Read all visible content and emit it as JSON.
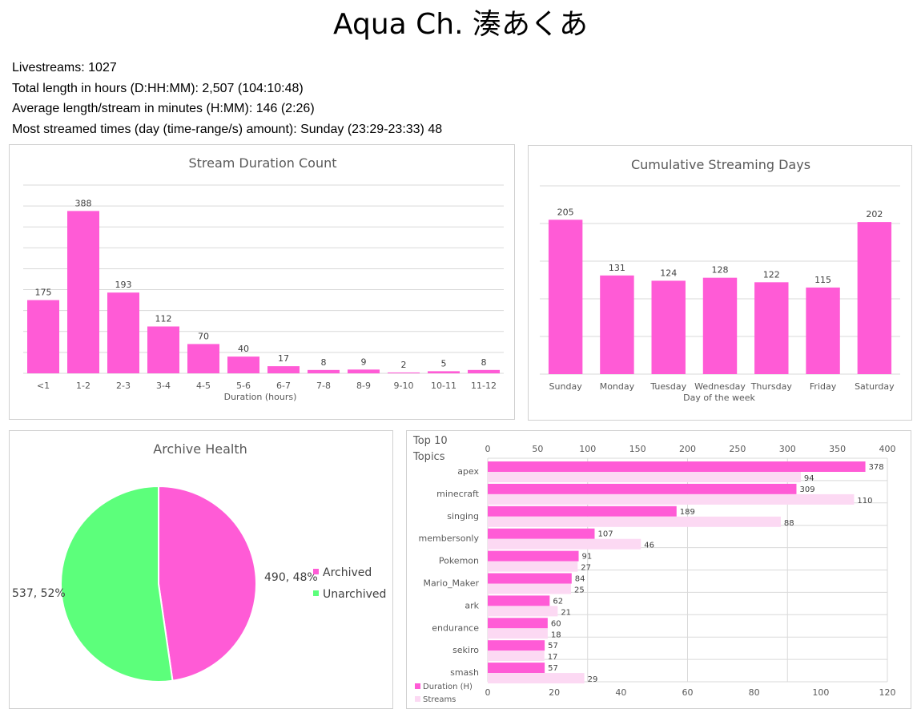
{
  "page": {
    "title": "Aqua Ch. 湊あくあ",
    "stats": [
      "Livestreams: 1027",
      "Total length in hours (D:HH:MM): 2,507 (104:10:48)",
      "Average length/stream in minutes (H:MM): 146 (2:26)",
      "Most streamed times (day (time-range/s) amount): Sunday (23:29-23:33) 48"
    ]
  },
  "colors": {
    "primary": "#ff5bd6",
    "secondary": "#fcd9f3",
    "unarchived": "#5cff7b",
    "grid": "#d9d9d9",
    "text": "#595959",
    "title": "#595959"
  },
  "chart_data": [
    {
      "type": "bar",
      "title": "Stream Duration Count",
      "xlabel": "Duration (hours)",
      "ylabel": "",
      "categories": [
        "<1",
        "1-2",
        "2-3",
        "3-4",
        "4-5",
        "5-6",
        "6-7",
        "7-8",
        "8-9",
        "9-10",
        "10-11",
        "11-12"
      ],
      "values": [
        175,
        388,
        193,
        112,
        70,
        40,
        17,
        8,
        9,
        2,
        5,
        8
      ],
      "ylim": [
        0,
        450
      ],
      "grid": true,
      "data_labels": true
    },
    {
      "type": "bar",
      "title": "Cumulative Streaming Days",
      "xlabel": "Day of the week",
      "ylabel": "",
      "categories": [
        "Sunday",
        "Monday",
        "Tuesday",
        "Wednesday",
        "Thursday",
        "Friday",
        "Saturday"
      ],
      "values": [
        205,
        131,
        124,
        128,
        122,
        115,
        202
      ],
      "ylim": [
        0,
        250
      ],
      "grid": true,
      "data_labels": true
    },
    {
      "type": "pie",
      "title": "Archive Health",
      "labels": [
        "Archived",
        "Unarchived"
      ],
      "values": [
        490,
        537
      ],
      "percent_labels": [
        "490, 48%",
        "537, 52%"
      ],
      "legend": "right"
    },
    {
      "type": "bar",
      "orientation": "horizontal",
      "title": "Top 10 Topics",
      "categories": [
        "apex",
        "minecraft",
        "singing",
        "membersonly",
        "Pokemon",
        "Mario_Maker",
        "ark",
        "endurance",
        "sekiro",
        "smash"
      ],
      "series": [
        {
          "name": "Duration (H)",
          "values": [
            378,
            309,
            189,
            107,
            91,
            84,
            62,
            60,
            57,
            57
          ],
          "axis": "top",
          "xlim": [
            0,
            400
          ]
        },
        {
          "name": "Streams",
          "values": [
            94,
            110,
            88,
            46,
            27,
            25,
            21,
            18,
            17,
            29
          ],
          "axis": "bottom",
          "xlim": [
            0,
            120
          ]
        }
      ],
      "top_ticks": [
        0,
        50,
        100,
        150,
        200,
        250,
        300,
        350,
        400
      ],
      "bottom_ticks": [
        0,
        20,
        40,
        60,
        80,
        100,
        120
      ],
      "legend": "bottom-left",
      "grid": true
    }
  ]
}
